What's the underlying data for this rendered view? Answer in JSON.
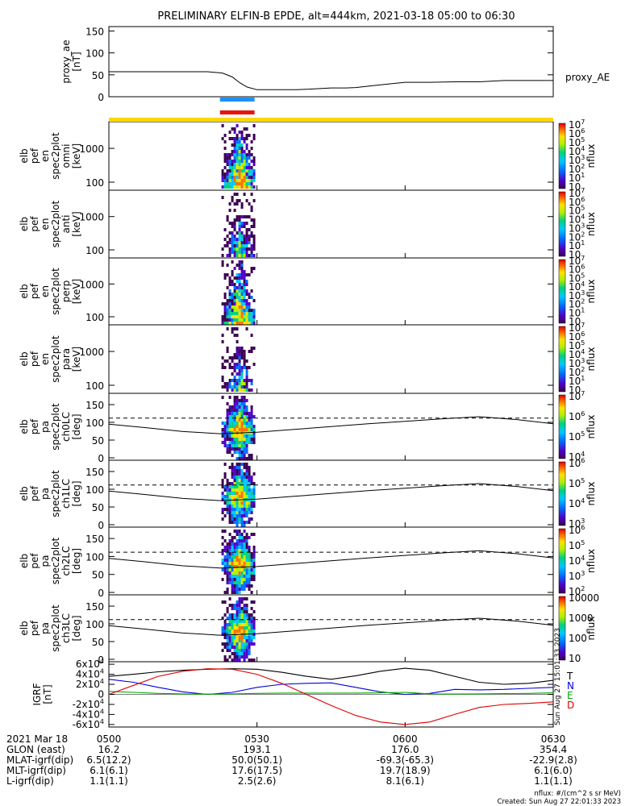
{
  "title": "PRELIMINARY ELFIN-B EPDE, alt=444km, 2021-03-18 05:00 to 06:30",
  "colors": {
    "blue_bar": "#1e90ff",
    "red_bar": "#e8140a",
    "yellow_bar": "#ffd700",
    "N": "#0000dd",
    "E": "#00aa00",
    "D": "#dd0000",
    "total": "#000000"
  },
  "chart_data": [
    {
      "type": "line",
      "id": "proxy_ae",
      "ylabel_lines": [
        "proxy_ae",
        "[nT]"
      ],
      "legend": "proxy_AE",
      "ylim": [
        0,
        160
      ],
      "yticks": [
        "0",
        "50",
        "100",
        "150"
      ],
      "yticks_values": [
        0,
        50,
        100,
        150
      ],
      "x_minutes": [
        0,
        10,
        20,
        23,
        25,
        26.5,
        28,
        30,
        35,
        38,
        40,
        45,
        48,
        50,
        55,
        60,
        65,
        70,
        75,
        80,
        85,
        90
      ],
      "values": [
        57,
        57,
        57,
        54,
        45,
        32,
        22,
        16,
        16,
        16,
        17,
        20,
        20,
        21,
        27,
        33,
        33,
        34,
        34,
        37,
        37,
        37
      ]
    },
    {
      "type": "heatmap",
      "id": "omni",
      "ylabel_lines": [
        "elb",
        "pef",
        "en",
        "spec2plot",
        "omni",
        "[keV]"
      ],
      "yticks": [
        "100",
        "1000"
      ],
      "colorbar": {
        "label": "nflux",
        "ticks": [
          "10",
          "10^1",
          "10^2",
          "10^3",
          "10^4",
          "10^5",
          "10^6",
          "10^7"
        ]
      }
    },
    {
      "type": "heatmap",
      "id": "anti",
      "ylabel_lines": [
        "elb",
        "pef",
        "en",
        "spec2plot",
        "anti",
        "[keV]"
      ],
      "yticks": [
        "100",
        "1000"
      ],
      "colorbar": {
        "label": "nflux",
        "ticks": [
          "10",
          "10^1",
          "10^2",
          "10^3",
          "10^4",
          "10^5",
          "10^6",
          "10^7"
        ]
      }
    },
    {
      "type": "heatmap",
      "id": "perp",
      "ylabel_lines": [
        "elb",
        "pef",
        "en",
        "spec2plot",
        "perp",
        "[keV]"
      ],
      "yticks": [
        "100",
        "1000"
      ],
      "colorbar": {
        "label": "nflux",
        "ticks": [
          "10",
          "10^1",
          "10^2",
          "10^3",
          "10^4",
          "10^5",
          "10^6",
          "10^7"
        ]
      }
    },
    {
      "type": "heatmap",
      "id": "para",
      "ylabel_lines": [
        "elb",
        "pef",
        "en",
        "spec2plot",
        "para",
        "[keV]"
      ],
      "yticks": [
        "100",
        "1000"
      ],
      "colorbar": {
        "label": "nflux",
        "ticks": [
          "10",
          "10^1",
          "10^2",
          "10^3",
          "10^4",
          "10^5",
          "10^6",
          "10^7"
        ]
      }
    },
    {
      "type": "heatmap",
      "id": "ch0LC",
      "ylabel_lines": [
        "elb",
        "pef",
        "pa",
        "spec2plot",
        "ch0LC",
        "[deg]"
      ],
      "yticks": [
        "0",
        "50",
        "100",
        "150"
      ],
      "colorbar": {
        "label": "nflux",
        "ticks": [
          "10^4",
          "10^5",
          "10^6",
          "10^7"
        ]
      }
    },
    {
      "type": "heatmap",
      "id": "ch1LC",
      "ylabel_lines": [
        "elb",
        "pef",
        "pa",
        "spec2plot",
        "ch1LC",
        "[deg]"
      ],
      "yticks": [
        "0",
        "50",
        "100",
        "150"
      ],
      "colorbar": {
        "label": "nflux",
        "ticks": [
          "10^3",
          "10^4",
          "10^5",
          "10^6"
        ]
      }
    },
    {
      "type": "heatmap",
      "id": "ch2LC",
      "ylabel_lines": [
        "elb",
        "pef",
        "pa",
        "spec2plot",
        "ch2LC",
        "[deg]"
      ],
      "yticks": [
        "0",
        "50",
        "100",
        "150"
      ],
      "colorbar": {
        "label": "nflux",
        "ticks": [
          "10^2",
          "10^3",
          "10^4",
          "10^5",
          "10^6"
        ]
      }
    },
    {
      "type": "heatmap",
      "id": "ch3LC",
      "ylabel_lines": [
        "elb",
        "pef",
        "pa",
        "spec2plot",
        "ch3LC",
        "[deg]"
      ],
      "yticks": [
        "0",
        "50",
        "100",
        "150"
      ],
      "colorbar": {
        "label": "nflux",
        "ticks": [
          "10",
          "100",
          "1000",
          "10000"
        ]
      }
    },
    {
      "type": "line",
      "id": "igrf",
      "ylabel_lines": [
        "IGRF",
        "[nT]"
      ],
      "ylim": [
        -65000,
        65000
      ],
      "yticks": [
        "-6x10^4",
        "-4x10^4",
        "-2x10^4",
        "0",
        "2x10^4",
        "4x10^4",
        "6x10^4"
      ],
      "yticks_values": [
        -60000,
        -40000,
        -20000,
        0,
        20000,
        40000,
        60000
      ],
      "legend": [
        "T",
        "N",
        "E",
        "D"
      ],
      "x_minutes": [
        0,
        5,
        10,
        15,
        20,
        25,
        30,
        35,
        40,
        45,
        50,
        55,
        60,
        65,
        70,
        75,
        80,
        85,
        90
      ],
      "series": [
        {
          "name": "T",
          "values": [
            36000,
            40000,
            45000,
            48000,
            50000,
            51000,
            50000,
            44000,
            36000,
            30000,
            37000,
            46000,
            52000,
            48000,
            36000,
            24000,
            20000,
            22000,
            28000
          ]
        },
        {
          "name": "N",
          "values": [
            30000,
            24000,
            14000,
            5000,
            0,
            4000,
            14000,
            20000,
            22000,
            23000,
            14000,
            5000,
            0,
            2000,
            10000,
            9000,
            10000,
            12000,
            14000
          ]
        },
        {
          "name": "E",
          "values": [
            6000,
            4000,
            2000,
            1000,
            500,
            1000,
            2000,
            2500,
            2500,
            2500,
            2500,
            3000,
            4000,
            1000,
            600,
            1000,
            1500,
            2000,
            3000
          ]
        },
        {
          "name": "D",
          "values": [
            0,
            18000,
            36000,
            46000,
            51000,
            50000,
            40000,
            22000,
            0,
            -22000,
            -42000,
            -55000,
            -60000,
            -55000,
            -40000,
            -26000,
            -20000,
            -18000,
            -15000
          ]
        }
      ]
    }
  ],
  "pa_solid_line": [
    95,
    85,
    74,
    68,
    72,
    80,
    88,
    96,
    103,
    110,
    116,
    108,
    96
  ],
  "pa_dashed_line": 112,
  "x_ticks": [
    {
      "minutes": 0,
      "time": "0500",
      "glon": "16.2",
      "mlat": "6.5(12.2)",
      "mlt": "6.1(6.1)",
      "l": "1.1(1.1)"
    },
    {
      "minutes": 30,
      "time": "0530",
      "glon": "193.1",
      "mlat": "50.0(50.1)",
      "mlt": "17.6(17.5)",
      "l": "2.5(2.6)"
    },
    {
      "minutes": 60,
      "time": "0600",
      "glon": "176.0",
      "mlat": "-69.3(-65.3)",
      "mlt": "19.7(18.9)",
      "l": "8.1(6.1)"
    },
    {
      "minutes": 90,
      "time": "0630",
      "glon": "354.4",
      "mlat": "-22.9(2.8)",
      "mlt": "6.1(6.0)",
      "l": "1.1(1.1)"
    }
  ],
  "row_labels": [
    "2021 Mar 18",
    "GLON (east)",
    "MLAT-igrf(dip)",
    "MLT-igrf(dip)",
    "L-igrf(dip)"
  ],
  "footer": {
    "nflux": "nflux: #/(cm^2 s sr MeV)",
    "created": "Created: Sun Aug 27 22:01:33 2023"
  },
  "side_stamp": "Sun Aug 27 15:01:33 2023"
}
